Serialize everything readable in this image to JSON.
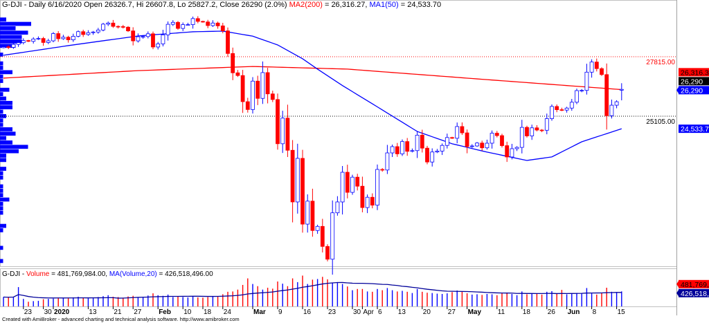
{
  "title": {
    "symbol": "G-DJI - Daily 6/16/2020 Open 26326.7, Hi 26607.8, Lo 25827.2, Close 26290 (2.0%) ",
    "ma2_label": "MA2(200)",
    "ma2_value": " = 26,316.27, ",
    "ma1_label": "MA1(50)",
    "ma1_value": " = 24,533.70"
  },
  "volume_title": {
    "symbol": "G-DJI - ",
    "vol_label": "Volume",
    "vol_value": " = 481,769,984.00, ",
    "ma_label": "MA(Volume,20)",
    "ma_value": " = 426,518,496.00"
  },
  "footer": "Created with AmiBroker - advanced charting and technical analysis software. http://www.amibroker.com",
  "colors": {
    "up": "#0000ff",
    "down": "#ff0000",
    "ma200": "#ff0000",
    "ma50": "#0000ff",
    "vol_ma": "#000099"
  },
  "chart_data": {
    "type": "candlestick",
    "title": "G-DJI - Daily",
    "last_bar": {
      "open": 26326.7,
      "high": 26607.8,
      "low": 25827.2,
      "close": 26290
    },
    "closes": [
      28267,
      28239,
      28376,
      28455,
      28551,
      28515,
      28621,
      28645,
      28462,
      28538,
      28868,
      28634,
      28703,
      28583,
      28745,
      28956,
      28824,
      28907,
      28940,
      29030,
      29297,
      29348,
      29196,
      29186,
      29160,
      28990,
      28535,
      28723,
      28734,
      28859,
      28256,
      28399,
      28808,
      29291,
      29380,
      29103,
      29276,
      29276,
      29551,
      29423,
      29398,
      29232,
      29348,
      29219,
      28992,
      27961,
      27081,
      26957,
      25766,
      25409,
      26703,
      25917,
      27091,
      26121,
      25865,
      23851,
      25018,
      23553,
      21200,
      23185,
      20189,
      21237,
      19899,
      20087,
      19174,
      18592,
      20705,
      21200,
      22552,
      21637,
      22328,
      21917,
      20944,
      21413,
      21053,
      22680,
      22654,
      23434,
      23719,
      23390,
      23950,
      23505,
      23538,
      24242,
      23650,
      23019,
      23475,
      23516,
      23775,
      24134,
      24101,
      24634,
      24346,
      23724,
      23750,
      23883,
      23665,
      23876,
      24331,
      24221,
      23764,
      23248,
      23625,
      23685,
      24597,
      24207,
      24576,
      24474,
      24465,
      24995,
      25548,
      25401,
      25383,
      25475,
      25742,
      26270,
      26282,
      27111,
      27572,
      27272,
      27000,
      25128,
      25606,
      25763,
      26290
    ],
    "volumes_millions": [
      300,
      290,
      310,
      620,
      240,
      150,
      170,
      180,
      230,
      240,
      250,
      280,
      260,
      280,
      290,
      310,
      270,
      260,
      290,
      300,
      330,
      360,
      310,
      300,
      280,
      320,
      340,
      300,
      310,
      350,
      420,
      360,
      340,
      380,
      300,
      320,
      300,
      290,
      320,
      290,
      280,
      300,
      320,
      310,
      390,
      470,
      480,
      540,
      690,
      900,
      720,
      650,
      540,
      600,
      570,
      800,
      730,
      650,
      900,
      780,
      990,
      720,
      860,
      880,
      950,
      870,
      760,
      780,
      720,
      640,
      520,
      560,
      560,
      480,
      470,
      560,
      520,
      590,
      520,
      480,
      500,
      470,
      430,
      560,
      470,
      440,
      430,
      410,
      400,
      420,
      460,
      510,
      480,
      420,
      380,
      390,
      370,
      400,
      390,
      360,
      420,
      440,
      400,
      360,
      480,
      390,
      420,
      400,
      380,
      470,
      490,
      420,
      530,
      390,
      400,
      430,
      420,
      590,
      420,
      380,
      440,
      600,
      470,
      460,
      482
    ],
    "ma50_points": [
      [
        0,
        27880
      ],
      [
        13,
        28320
      ],
      [
        27,
        28760
      ],
      [
        38,
        28950
      ],
      [
        44,
        28980
      ],
      [
        50,
        28750
      ],
      [
        55,
        28350
      ],
      [
        60,
        27720
      ],
      [
        63,
        27250
      ],
      [
        68,
        26500
      ],
      [
        74,
        25670
      ],
      [
        83,
        24410
      ],
      [
        90,
        23850
      ],
      [
        97,
        23470
      ],
      [
        105,
        23090
      ],
      [
        110,
        23250
      ],
      [
        116,
        23940
      ],
      [
        124,
        24533.7
      ]
    ],
    "ma200_points": [
      [
        0,
        26840
      ],
      [
        27,
        27180
      ],
      [
        50,
        27370
      ],
      [
        69,
        27250
      ],
      [
        97,
        26770
      ],
      [
        124,
        26316.3
      ]
    ],
    "levels": [
      {
        "value": 27815,
        "label": "27815.00",
        "color": "#ff0000"
      },
      {
        "value": 25105,
        "label": "25105.00",
        "color": "#000000"
      }
    ],
    "right_labels": [
      {
        "value": 26316.3,
        "label": "26,316.3",
        "bg": "#ff0000",
        "fg": "#000000"
      },
      {
        "value": 26290,
        "label": "26,290",
        "bg": "#000000",
        "fg": "#ffffff",
        "offset": -11
      },
      {
        "value": 26290,
        "label": "26,290",
        "bg": "#0000ff",
        "fg": "#ffffff",
        "arrow": true
      },
      {
        "value": 24533.7,
        "label": "24,533.7",
        "bg": "#0000ff",
        "fg": "#ffffff"
      }
    ],
    "volume_labels": [
      {
        "value": 481.77,
        "label": "481,769,",
        "bg": "#ff0000",
        "fg": "#000000"
      },
      {
        "value": 426.52,
        "label": "426,518,",
        "bg": "#000099",
        "fg": "#ffffff"
      }
    ],
    "x_ticks": [
      {
        "i": 4,
        "label": "23"
      },
      {
        "i": 8,
        "label": "30"
      },
      {
        "i": 10,
        "label": "2020",
        "bold": true
      },
      {
        "i": 17,
        "label": "13"
      },
      {
        "i": 22,
        "label": "21"
      },
      {
        "i": 26,
        "label": "27"
      },
      {
        "i": 31,
        "label": "Feb",
        "bold": true
      },
      {
        "i": 36,
        "label": "10"
      },
      {
        "i": 40,
        "label": "18"
      },
      {
        "i": 44,
        "label": "24"
      },
      {
        "i": 50,
        "label": "Mar",
        "bold": true
      },
      {
        "i": 55,
        "label": "9"
      },
      {
        "i": 60,
        "label": "16"
      },
      {
        "i": 65,
        "label": "23"
      },
      {
        "i": 70,
        "label": "30"
      },
      {
        "i": 72,
        "label": "Apr"
      },
      {
        "i": 75,
        "label": "6"
      },
      {
        "i": 79,
        "label": "13"
      },
      {
        "i": 84,
        "label": "20"
      },
      {
        "i": 89,
        "label": "27"
      },
      {
        "i": 93,
        "label": "May",
        "bold": true
      },
      {
        "i": 99,
        "label": "11"
      },
      {
        "i": 104,
        "label": "18"
      },
      {
        "i": 109,
        "label": "26"
      },
      {
        "i": 113,
        "label": "Jun",
        "bold": true
      },
      {
        "i": 118,
        "label": "8"
      },
      {
        "i": 123,
        "label": "15"
      }
    ]
  }
}
